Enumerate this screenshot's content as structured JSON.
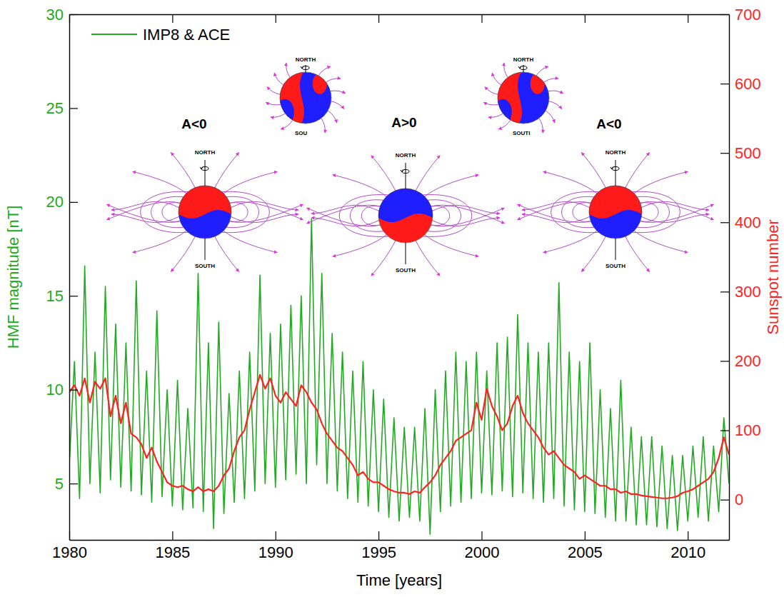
{
  "chart_data": {
    "type": "line",
    "x_label": "Time [years]",
    "y_label": "HMF magnitude [nT]",
    "y2_label": "Sunspot number",
    "xlim": [
      1980,
      2012
    ],
    "xticks": [
      1980,
      1985,
      1990,
      1995,
      2000,
      2005,
      2010
    ],
    "ylim": [
      2,
      30
    ],
    "yticks": [
      5,
      10,
      15,
      20,
      25,
      30
    ],
    "y2lim": [
      -58,
      700
    ],
    "y2ticks": [
      0,
      100,
      200,
      300,
      400,
      500,
      600,
      700
    ],
    "grid": false,
    "legend": "upper left",
    "annotations": [
      "A<0",
      "A>0",
      "A<0",
      "NORTH",
      "SOUTH",
      "NORTH",
      "SOUTH",
      "NORTH",
      "SOUTH",
      "NORTH",
      "SOU",
      "NORTH",
      "SOUTI"
    ],
    "x": [
      1980,
      1980.25,
      1980.5,
      1980.75,
      1981,
      1981.25,
      1981.5,
      1981.75,
      1982,
      1982.25,
      1982.5,
      1982.75,
      1983,
      1983.25,
      1983.5,
      1983.75,
      1984,
      1984.25,
      1984.5,
      1984.75,
      1985,
      1985.25,
      1985.5,
      1985.75,
      1986,
      1986.25,
      1986.5,
      1986.75,
      1987,
      1987.25,
      1987.5,
      1987.75,
      1988,
      1988.25,
      1988.5,
      1988.75,
      1989,
      1989.25,
      1989.5,
      1989.75,
      1990,
      1990.25,
      1990.5,
      1990.75,
      1991,
      1991.25,
      1991.5,
      1991.75,
      1992,
      1992.25,
      1992.5,
      1992.75,
      1993,
      1993.25,
      1993.5,
      1993.75,
      1994,
      1994.25,
      1994.5,
      1994.75,
      1995,
      1995.25,
      1995.5,
      1995.75,
      1996,
      1996.25,
      1996.5,
      1996.75,
      1997,
      1997.25,
      1997.5,
      1997.75,
      1998,
      1998.25,
      1998.5,
      1998.75,
      1999,
      1999.25,
      1999.5,
      1999.75,
      2000,
      2000.25,
      2000.5,
      2000.75,
      2001,
      2001.25,
      2001.5,
      2001.75,
      2002,
      2002.25,
      2002.5,
      2002.75,
      2003,
      2003.25,
      2003.5,
      2003.75,
      2004,
      2004.25,
      2004.5,
      2004.75,
      2005,
      2005.25,
      2005.5,
      2005.75,
      2006,
      2006.25,
      2006.5,
      2006.75,
      2007,
      2007.25,
      2007.5,
      2007.75,
      2008,
      2008.25,
      2008.5,
      2008.75,
      2009,
      2009.25,
      2009.5,
      2009.75,
      2010,
      2010.25,
      2010.5,
      2010.75,
      2011,
      2011.25,
      2011.5,
      2011.75,
      2012
    ],
    "series": [
      {
        "name": "IMP8 & ACE",
        "color": "#22aa22",
        "values": [
          6.0,
          11.5,
          4.2,
          16.6,
          5.0,
          12.0,
          4.5,
          15.5,
          5.2,
          13.5,
          4.8,
          12.5,
          4.6,
          15.8,
          4.4,
          11.0,
          4.0,
          14.2,
          4.3,
          10.0,
          3.8,
          10.5,
          3.6,
          9.0,
          3.7,
          16.2,
          3.5,
          12.5,
          2.6,
          13.6,
          3.4,
          9.8,
          4.0,
          11.0,
          4.2,
          12.0,
          4.6,
          16.1,
          5.0,
          13.0,
          4.8,
          13.5,
          5.2,
          14.5,
          5.5,
          15.0,
          5.0,
          19.1,
          6.0,
          16.2,
          5.0,
          13.0,
          4.6,
          12.0,
          4.2,
          11.0,
          4.0,
          11.5,
          3.8,
          10.0,
          3.5,
          9.5,
          3.2,
          8.5,
          3.0,
          8.0,
          3.2,
          8.0,
          3.0,
          9.0,
          2.3,
          10.0,
          3.5,
          11.0,
          3.8,
          12.0,
          4.0,
          11.5,
          4.2,
          12.0,
          4.5,
          11.0,
          4.4,
          12.5,
          4.6,
          12.8,
          4.3,
          14.0,
          4.5,
          12.5,
          4.2,
          12.0,
          4.0,
          12.5,
          4.2,
          15.7,
          3.8,
          12.0,
          3.6,
          11.5,
          3.5,
          12.5,
          3.4,
          10.0,
          3.2,
          9.0,
          3.0,
          10.5,
          3.0,
          8.0,
          2.8,
          7.5,
          2.8,
          7.5,
          2.7,
          7.0,
          2.6,
          6.5,
          2.5,
          6.5,
          3.0,
          7.0,
          3.2,
          7.5,
          3.0,
          7.0,
          3.5,
          8.5,
          5.0
        ]
      },
      {
        "color": "#ff2222",
        "axis": "y2",
        "values": [
          155,
          165,
          150,
          175,
          140,
          170,
          160,
          175,
          120,
          150,
          110,
          140,
          95,
          90,
          80,
          60,
          75,
          55,
          40,
          25,
          20,
          18,
          20,
          15,
          12,
          18,
          12,
          15,
          12,
          20,
          35,
          45,
          70,
          90,
          100,
          130,
          155,
          180,
          160,
          175,
          150,
          140,
          155,
          145,
          135,
          165,
          155,
          140,
          130,
          110,
          95,
          85,
          75,
          70,
          60,
          50,
          35,
          40,
          30,
          25,
          25,
          20,
          15,
          12,
          10,
          10,
          8,
          12,
          10,
          18,
          25,
          35,
          50,
          60,
          70,
          85,
          90,
          95,
          100,
          140,
          115,
          160,
          135,
          120,
          100,
          110,
          135,
          150,
          125,
          110,
          100,
          90,
          75,
          65,
          70,
          60,
          50,
          45,
          40,
          30,
          35,
          30,
          25,
          20,
          20,
          15,
          15,
          10,
          12,
          8,
          8,
          6,
          5,
          4,
          3,
          2,
          2,
          3,
          5,
          10,
          12,
          15,
          20,
          25,
          30,
          40,
          60,
          90,
          65
        ]
      }
    ]
  }
}
